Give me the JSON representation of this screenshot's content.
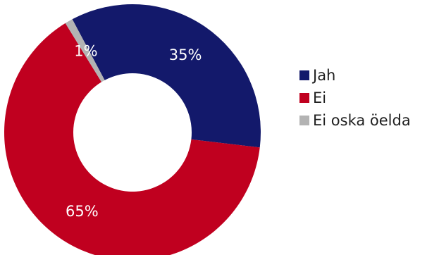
{
  "chart_data": {
    "type": "pie",
    "variant": "donut",
    "categories": [
      "Jah",
      "Ei",
      "Ei oska öelda"
    ],
    "values": [
      35,
      65,
      1
    ],
    "data_labels": [
      "35%",
      "65%",
      "1%"
    ],
    "colors": [
      "#13196b",
      "#c0001f",
      "#b3b3b3"
    ],
    "legend_position": "right",
    "title": "",
    "start_angle_deg": -28
  }
}
